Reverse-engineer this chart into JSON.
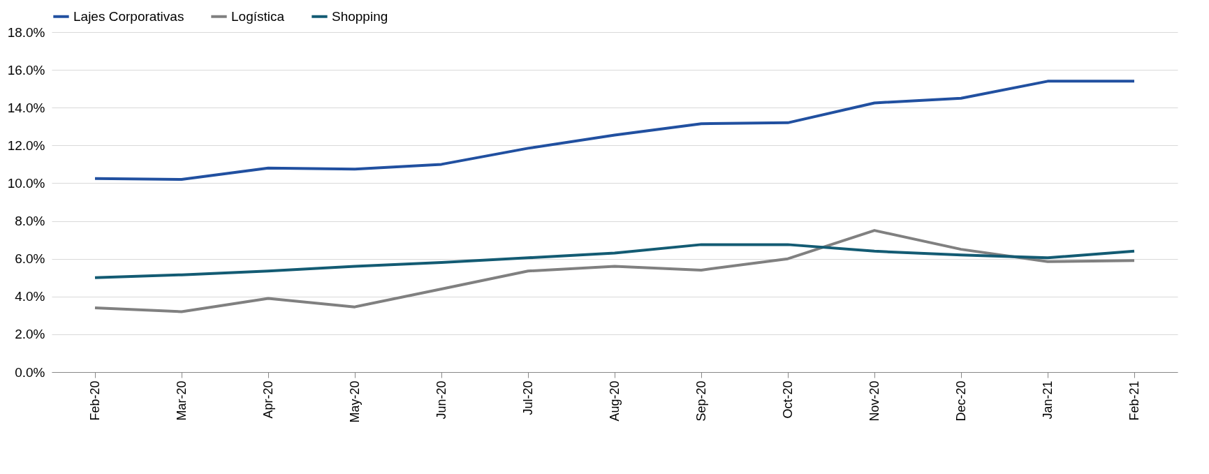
{
  "chart_data": {
    "type": "line",
    "categories": [
      "Feb-20",
      "Mar-20",
      "Apr-20",
      "May-20",
      "Jun-20",
      "Jul-20",
      "Aug-20",
      "Sep-20",
      "Oct-20",
      "Nov-20",
      "Dec-20",
      "Jan-21",
      "Feb-21"
    ],
    "series": [
      {
        "name": "Lajes Corporativas",
        "color": "#2150a0",
        "values": [
          10.25,
          10.2,
          10.8,
          10.75,
          11.0,
          11.85,
          12.55,
          13.15,
          13.2,
          14.25,
          14.5,
          15.4,
          15.4
        ]
      },
      {
        "name": "Logística",
        "color": "#808080",
        "values": [
          3.4,
          3.2,
          3.9,
          3.45,
          4.4,
          5.35,
          5.6,
          5.4,
          6.0,
          7.5,
          6.5,
          5.85,
          5.9
        ]
      },
      {
        "name": "Shopping",
        "color": "#135b73",
        "values": [
          5.0,
          5.15,
          5.35,
          5.6,
          5.8,
          6.05,
          6.3,
          6.75,
          6.75,
          6.4,
          6.2,
          6.05,
          6.4
        ]
      }
    ],
    "ylim": [
      0,
      18
    ],
    "yticks": [
      {
        "value": 0,
        "label": "0.0%"
      },
      {
        "value": 2,
        "label": "2.0%"
      },
      {
        "value": 4,
        "label": "4.0%"
      },
      {
        "value": 6,
        "label": "6.0%"
      },
      {
        "value": 8,
        "label": "8.0%"
      },
      {
        "value": 10,
        "label": "10.0%"
      },
      {
        "value": 12,
        "label": "12.0%"
      },
      {
        "value": 14,
        "label": "14.0%"
      },
      {
        "value": 16,
        "label": "16.0%"
      },
      {
        "value": 18,
        "label": "18.0%"
      }
    ],
    "grid": "y",
    "legend": "top",
    "marker": "none",
    "line_style": "solid"
  }
}
